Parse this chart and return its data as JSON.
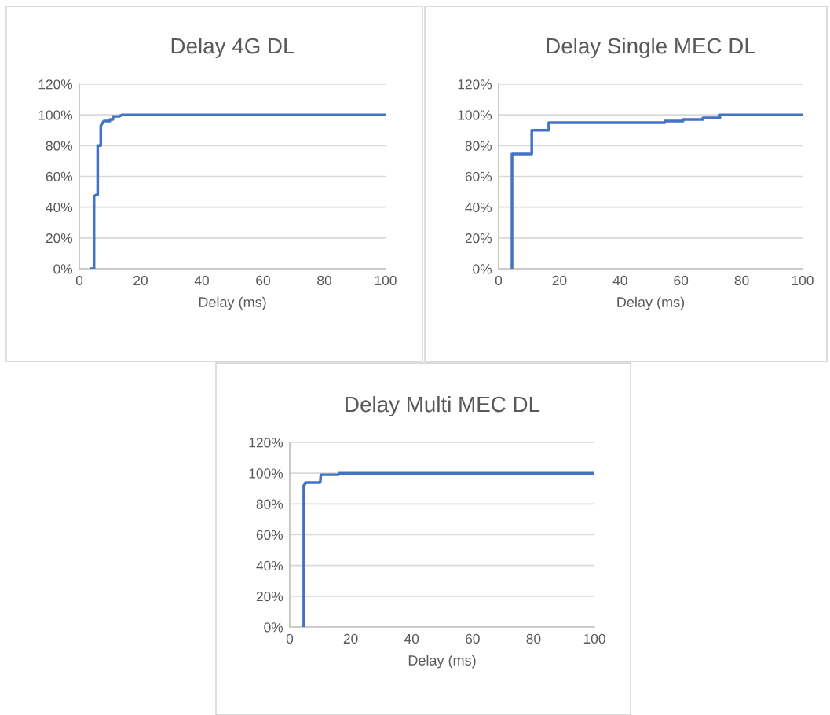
{
  "chart_data": [
    {
      "type": "line",
      "title": "Delay 4G DL",
      "xlabel": "Delay (ms)",
      "xlim": [
        0,
        100
      ],
      "xticks": [
        0,
        20,
        40,
        60,
        80,
        100
      ],
      "ylim": [
        0,
        120
      ],
      "yticks": [
        {
          "value": 0,
          "label": "0%"
        },
        {
          "value": 20,
          "label": "20%"
        },
        {
          "value": 40,
          "label": "40%"
        },
        {
          "value": 60,
          "label": "60%"
        },
        {
          "value": 80,
          "label": "80%"
        },
        {
          "value": 100,
          "label": "100%"
        },
        {
          "value": 120,
          "label": "120%"
        }
      ],
      "grid": "y",
      "legend": false,
      "series": [
        {
          "color": "#4472c4",
          "x": [
            4,
            4.8,
            4.8,
            5.5,
            6,
            6,
            7,
            7,
            8,
            10,
            10,
            11,
            11,
            13,
            14,
            100
          ],
          "values": [
            0,
            0,
            47,
            48,
            48,
            80,
            80,
            93,
            96,
            96,
            97,
            97,
            99,
            99,
            100,
            100
          ]
        }
      ]
    },
    {
      "type": "line",
      "title": "Delay Single MEC DL",
      "xlabel": "Delay (ms)",
      "xlim": [
        0,
        100
      ],
      "xticks": [
        0,
        20,
        40,
        60,
        80,
        100
      ],
      "ylim": [
        0,
        120
      ],
      "yticks": [
        {
          "value": 0,
          "label": "0%"
        },
        {
          "value": 20,
          "label": "20%"
        },
        {
          "value": 40,
          "label": "40%"
        },
        {
          "value": 60,
          "label": "60%"
        },
        {
          "value": 80,
          "label": "80%"
        },
        {
          "value": 100,
          "label": "100%"
        },
        {
          "value": 120,
          "label": "120%"
        }
      ],
      "grid": "y",
      "legend": false,
      "series": [
        {
          "color": "#4472c4",
          "x": [
            4.4,
            4.4,
            10.9,
            10.9,
            16.5,
            16.5,
            54.7,
            54.7,
            60.7,
            60.7,
            67.2,
            67.2,
            72.8,
            72.8,
            100
          ],
          "values": [
            0,
            74.5,
            74.5,
            90,
            90,
            95,
            95,
            96,
            96,
            97,
            97,
            98,
            98,
            100,
            100
          ]
        }
      ]
    },
    {
      "type": "line",
      "title": "Delay Multi MEC DL",
      "xlabel": "Delay (ms)",
      "xlim": [
        0,
        100
      ],
      "xticks": [
        0,
        20,
        40,
        60,
        80,
        100
      ],
      "ylim": [
        0,
        120
      ],
      "yticks": [
        {
          "value": 0,
          "label": "0%"
        },
        {
          "value": 20,
          "label": "20%"
        },
        {
          "value": 40,
          "label": "40%"
        },
        {
          "value": 60,
          "label": "60%"
        },
        {
          "value": 80,
          "label": "80%"
        },
        {
          "value": 100,
          "label": "100%"
        },
        {
          "value": 120,
          "label": "120%"
        }
      ],
      "grid": "y",
      "legend": false,
      "series": [
        {
          "color": "#4472c4",
          "x": [
            4.6,
            4.6,
            5.4,
            10,
            10.2,
            16,
            16.2,
            100
          ],
          "values": [
            0,
            92,
            94,
            94,
            99,
            99,
            100,
            100
          ]
        }
      ]
    }
  ]
}
